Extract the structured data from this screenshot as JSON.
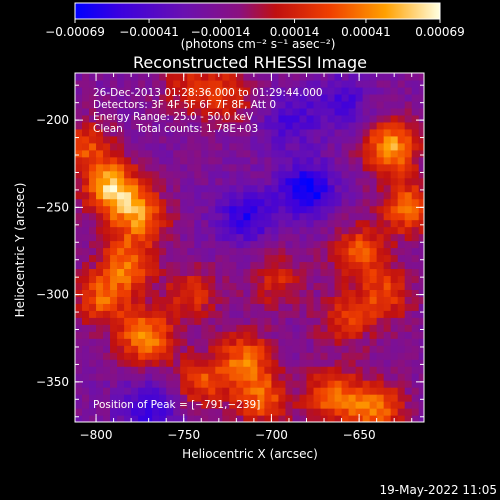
{
  "chart_data": {
    "type": "heatmap",
    "title": "Reconstructed RHESSI Image",
    "xlabel": "Heliocentric X (arcsec)",
    "ylabel": "Heliocentric Y (arcsec)",
    "xlim": [
      -812,
      -613
    ],
    "ylim": [
      -373,
      -173
    ],
    "x_ticks": [
      -800,
      -750,
      -700,
      -650
    ],
    "x_tick_labels": [
      "−800",
      "−750",
      "−700",
      "−650"
    ],
    "y_ticks": [
      -200,
      -250,
      -300,
      -350
    ],
    "y_tick_labels": [
      "−200",
      "−250",
      "−300",
      "−350"
    ],
    "colorbar": {
      "ticks": [
        -0.00069,
        -0.00041,
        -0.00014,
        0.00014,
        0.00041,
        0.00069
      ],
      "tick_labels": [
        "−0.00069",
        "−0.00041",
        "−0.00014",
        "0.00014",
        "0.00041",
        "0.00069"
      ],
      "range": [
        -0.00069,
        0.00069
      ],
      "units": "(photons cm⁻² s⁻¹ asec⁻²)"
    },
    "annotations": [
      "26-Dec-2013 01:28:36.000 to 01:29:44.000",
      "Detectors: 3F 4F 5F 6F 7F 8F, Att 0",
      "Energy Range: 25.0 - 50.0 keV",
      "Clean    Total counts: 1.78E+03"
    ],
    "peak_label": "Position of Peak = [−791,−239]",
    "peak": [
      -791,
      -239
    ],
    "emission_blobs": [
      {
        "x": -791,
        "y": -239,
        "value": 0.00069
      },
      {
        "x": -775,
        "y": -255,
        "value": 0.00055
      },
      {
        "x": -782,
        "y": -283,
        "value": 0.0005
      },
      {
        "x": -797,
        "y": -302,
        "value": 0.00045
      },
      {
        "x": -772,
        "y": -324,
        "value": 0.0006
      },
      {
        "x": -745,
        "y": -300,
        "value": 0.00035
      },
      {
        "x": -740,
        "y": -350,
        "value": 0.00042
      },
      {
        "x": -715,
        "y": -337,
        "value": 0.0005
      },
      {
        "x": -705,
        "y": -360,
        "value": 0.00045
      },
      {
        "x": -665,
        "y": -358,
        "value": 0.0005
      },
      {
        "x": -640,
        "y": -365,
        "value": 0.00055
      },
      {
        "x": -632,
        "y": -215,
        "value": 0.00065
      },
      {
        "x": -622,
        "y": -250,
        "value": 0.0005
      },
      {
        "x": -650,
        "y": -275,
        "value": 0.00045
      },
      {
        "x": -635,
        "y": -300,
        "value": 0.0004
      },
      {
        "x": -658,
        "y": -315,
        "value": 0.00035
      },
      {
        "x": -725,
        "y": -185,
        "value": 0.00035
      },
      {
        "x": -748,
        "y": -180,
        "value": 0.0003
      },
      {
        "x": -805,
        "y": -215,
        "value": 0.0004
      },
      {
        "x": -697,
        "y": -292,
        "value": 0.00032
      },
      {
        "x": -715,
        "y": -255,
        "value": -0.0004
      },
      {
        "x": -680,
        "y": -240,
        "value": -0.00055
      },
      {
        "x": -690,
        "y": -200,
        "value": -0.0003
      },
      {
        "x": -770,
        "y": -365,
        "value": -0.0004
      },
      {
        "x": -660,
        "y": -190,
        "value": -0.0003
      }
    ]
  },
  "footer": {
    "timestamp": "19-May-2022 11:05"
  }
}
